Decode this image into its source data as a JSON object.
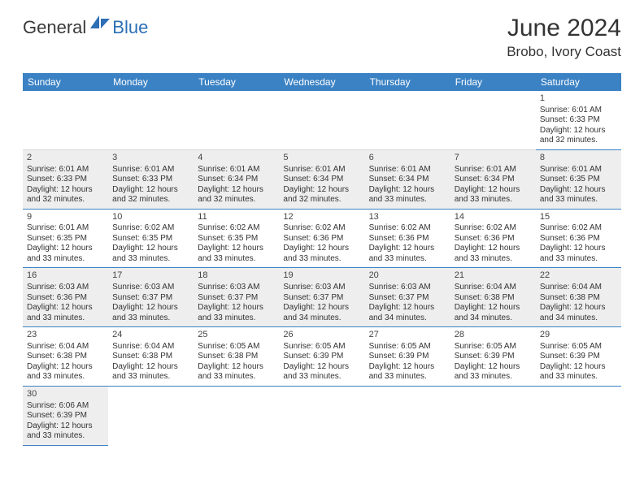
{
  "logo": {
    "text1": "General",
    "text2": "Blue",
    "sail_color": "#2c6fb5"
  },
  "title": "June 2024",
  "location": "Brobo, Ivory Coast",
  "colors": {
    "header_bg": "#3b82c4",
    "header_fg": "#ffffff",
    "row_alt_bg": "#eeeeee",
    "row_bg": "#ffffff",
    "cell_border": "#3b82c4",
    "text": "#333333"
  },
  "weekdays": [
    "Sunday",
    "Monday",
    "Tuesday",
    "Wednesday",
    "Thursday",
    "Friday",
    "Saturday"
  ],
  "first_weekday_index": 6,
  "days": [
    {
      "n": 1,
      "sunrise": "6:01 AM",
      "sunset": "6:33 PM",
      "dl": "12 hours and 32 minutes."
    },
    {
      "n": 2,
      "sunrise": "6:01 AM",
      "sunset": "6:33 PM",
      "dl": "12 hours and 32 minutes."
    },
    {
      "n": 3,
      "sunrise": "6:01 AM",
      "sunset": "6:33 PM",
      "dl": "12 hours and 32 minutes."
    },
    {
      "n": 4,
      "sunrise": "6:01 AM",
      "sunset": "6:34 PM",
      "dl": "12 hours and 32 minutes."
    },
    {
      "n": 5,
      "sunrise": "6:01 AM",
      "sunset": "6:34 PM",
      "dl": "12 hours and 32 minutes."
    },
    {
      "n": 6,
      "sunrise": "6:01 AM",
      "sunset": "6:34 PM",
      "dl": "12 hours and 33 minutes."
    },
    {
      "n": 7,
      "sunrise": "6:01 AM",
      "sunset": "6:34 PM",
      "dl": "12 hours and 33 minutes."
    },
    {
      "n": 8,
      "sunrise": "6:01 AM",
      "sunset": "6:35 PM",
      "dl": "12 hours and 33 minutes."
    },
    {
      "n": 9,
      "sunrise": "6:01 AM",
      "sunset": "6:35 PM",
      "dl": "12 hours and 33 minutes."
    },
    {
      "n": 10,
      "sunrise": "6:02 AM",
      "sunset": "6:35 PM",
      "dl": "12 hours and 33 minutes."
    },
    {
      "n": 11,
      "sunrise": "6:02 AM",
      "sunset": "6:35 PM",
      "dl": "12 hours and 33 minutes."
    },
    {
      "n": 12,
      "sunrise": "6:02 AM",
      "sunset": "6:36 PM",
      "dl": "12 hours and 33 minutes."
    },
    {
      "n": 13,
      "sunrise": "6:02 AM",
      "sunset": "6:36 PM",
      "dl": "12 hours and 33 minutes."
    },
    {
      "n": 14,
      "sunrise": "6:02 AM",
      "sunset": "6:36 PM",
      "dl": "12 hours and 33 minutes."
    },
    {
      "n": 15,
      "sunrise": "6:02 AM",
      "sunset": "6:36 PM",
      "dl": "12 hours and 33 minutes."
    },
    {
      "n": 16,
      "sunrise": "6:03 AM",
      "sunset": "6:36 PM",
      "dl": "12 hours and 33 minutes."
    },
    {
      "n": 17,
      "sunrise": "6:03 AM",
      "sunset": "6:37 PM",
      "dl": "12 hours and 33 minutes."
    },
    {
      "n": 18,
      "sunrise": "6:03 AM",
      "sunset": "6:37 PM",
      "dl": "12 hours and 33 minutes."
    },
    {
      "n": 19,
      "sunrise": "6:03 AM",
      "sunset": "6:37 PM",
      "dl": "12 hours and 34 minutes."
    },
    {
      "n": 20,
      "sunrise": "6:03 AM",
      "sunset": "6:37 PM",
      "dl": "12 hours and 34 minutes."
    },
    {
      "n": 21,
      "sunrise": "6:04 AM",
      "sunset": "6:38 PM",
      "dl": "12 hours and 34 minutes."
    },
    {
      "n": 22,
      "sunrise": "6:04 AM",
      "sunset": "6:38 PM",
      "dl": "12 hours and 34 minutes."
    },
    {
      "n": 23,
      "sunrise": "6:04 AM",
      "sunset": "6:38 PM",
      "dl": "12 hours and 33 minutes."
    },
    {
      "n": 24,
      "sunrise": "6:04 AM",
      "sunset": "6:38 PM",
      "dl": "12 hours and 33 minutes."
    },
    {
      "n": 25,
      "sunrise": "6:05 AM",
      "sunset": "6:38 PM",
      "dl": "12 hours and 33 minutes."
    },
    {
      "n": 26,
      "sunrise": "6:05 AM",
      "sunset": "6:39 PM",
      "dl": "12 hours and 33 minutes."
    },
    {
      "n": 27,
      "sunrise": "6:05 AM",
      "sunset": "6:39 PM",
      "dl": "12 hours and 33 minutes."
    },
    {
      "n": 28,
      "sunrise": "6:05 AM",
      "sunset": "6:39 PM",
      "dl": "12 hours and 33 minutes."
    },
    {
      "n": 29,
      "sunrise": "6:05 AM",
      "sunset": "6:39 PM",
      "dl": "12 hours and 33 minutes."
    },
    {
      "n": 30,
      "sunrise": "6:06 AM",
      "sunset": "6:39 PM",
      "dl": "12 hours and 33 minutes."
    }
  ],
  "labels": {
    "sunrise": "Sunrise:",
    "sunset": "Sunset:",
    "daylight": "Daylight:"
  }
}
